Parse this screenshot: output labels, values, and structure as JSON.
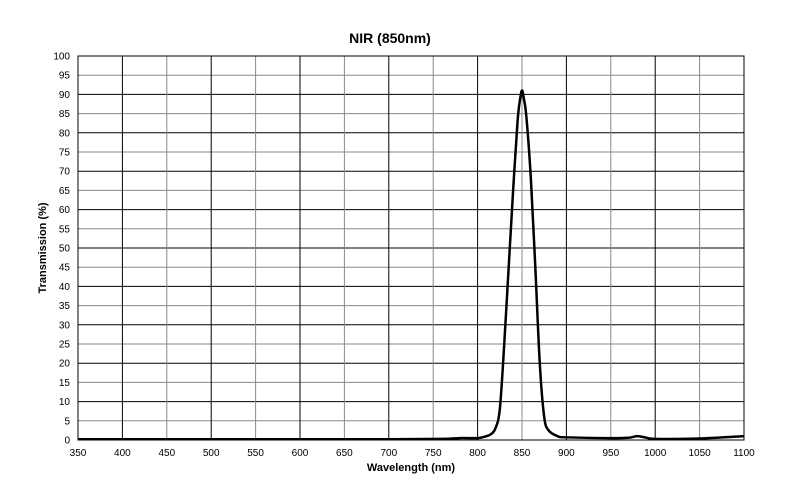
{
  "chart_data": {
    "type": "line",
    "title": "NIR (850nm)",
    "xlabel": "Wavelength (nm)",
    "ylabel": "Transmission (%)",
    "xlim": [
      350,
      1100
    ],
    "ylim": [
      0,
      100
    ],
    "grid": true,
    "xticks": [
      350,
      400,
      450,
      500,
      550,
      600,
      650,
      700,
      750,
      800,
      850,
      900,
      950,
      1000,
      1050,
      1100
    ],
    "yticks": [
      0,
      5,
      10,
      15,
      20,
      25,
      30,
      35,
      40,
      45,
      50,
      55,
      60,
      65,
      70,
      75,
      80,
      85,
      90,
      95,
      100
    ],
    "series": [
      {
        "name": "NIR (850nm)",
        "color": "#000000",
        "x": [
          350,
          400,
          500,
          600,
          700,
          760,
          780,
          800,
          810,
          815,
          820,
          825,
          830,
          835,
          840,
          845,
          848,
          850,
          852,
          855,
          860,
          865,
          870,
          875,
          880,
          890,
          900,
          950,
          970,
          980,
          990,
          1000,
          1050,
          1100
        ],
        "y": [
          0.2,
          0.2,
          0.2,
          0.2,
          0.2,
          0.3,
          0.5,
          0.5,
          1,
          1.5,
          3,
          8,
          25,
          45,
          65,
          83,
          89,
          91,
          89,
          84,
          68,
          45,
          20,
          6,
          2.5,
          1,
          0.7,
          0.5,
          0.6,
          1,
          0.6,
          0.3,
          0.4,
          1
        ]
      }
    ]
  }
}
